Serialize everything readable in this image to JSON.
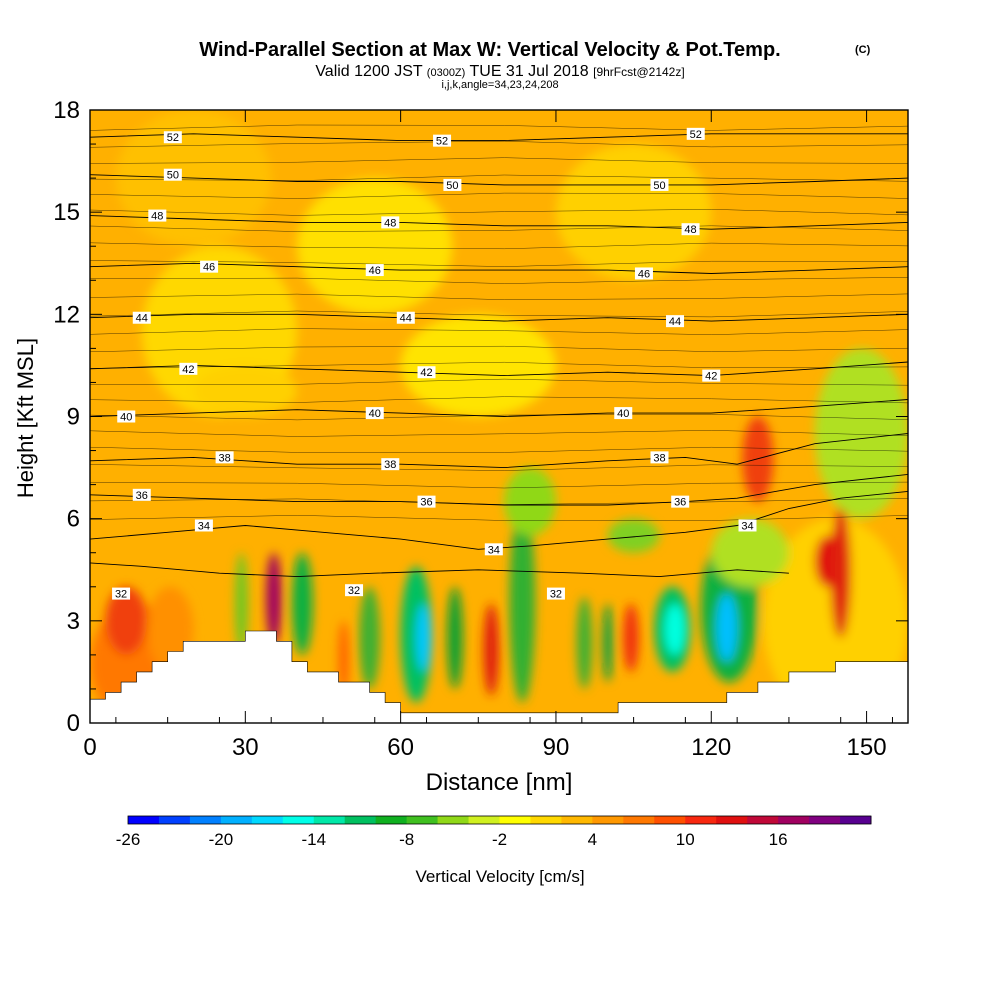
{
  "title": {
    "main": "Wind-Parallel Section at Max W: Vertical Velocity & Pot.Temp.",
    "copyright": "(C)",
    "valid_prefix": "Valid 1200 JST",
    "valid_utc": "(0300Z)",
    "valid_date": "TUE 31 Jul 2018",
    "forecast": "[9hrFcst@2142z]",
    "indices": "i,j,k,angle=34,23,24,208"
  },
  "chart_data": {
    "type": "heatmap",
    "xlabel": "Distance [nm]",
    "ylabel": "Height [Kft MSL]",
    "xlim": [
      0,
      158
    ],
    "ylim": [
      0,
      18
    ],
    "x_ticks": [
      "0",
      "30",
      "60",
      "90",
      "120",
      "150"
    ],
    "y_ticks": [
      "0",
      "3",
      "6",
      "9",
      "12",
      "15",
      "18"
    ],
    "colorbar": {
      "label": "Vertical Velocity [cm/s]",
      "tick_labels": [
        "-26",
        "-20",
        "-14",
        "-8",
        "-2",
        "4",
        "10",
        "16"
      ],
      "colors": [
        "#0000ff",
        "#0040ff",
        "#0080ff",
        "#00b0ff",
        "#00d8ff",
        "#00ffe8",
        "#00e8a8",
        "#00c060",
        "#10b020",
        "#40c020",
        "#90d818",
        "#d0f020",
        "#ffff00",
        "#ffd800",
        "#ffb800",
        "#ff9800",
        "#ff7800",
        "#ff5000",
        "#f82810",
        "#e01010",
        "#c00838",
        "#a00060",
        "#800080",
        "#580090"
      ]
    },
    "isentropes": [
      {
        "label": "32",
        "x": [
          0,
          10,
          25,
          40,
          55,
          75,
          95,
          110,
          125,
          135
        ],
        "y": [
          4.7,
          4.6,
          4.4,
          4.3,
          4.4,
          4.5,
          4.4,
          4.3,
          4.5,
          4.4
        ]
      },
      {
        "label": "34",
        "x": [
          0,
          15,
          30,
          45,
          60,
          75,
          85,
          100,
          115,
          125,
          135,
          145,
          158
        ],
        "y": [
          5.4,
          5.6,
          5.8,
          5.6,
          5.4,
          5.1,
          5.2,
          5.4,
          5.6,
          5.8,
          6.3,
          6.6,
          6.8
        ]
      },
      {
        "label": "36",
        "x": [
          0,
          20,
          40,
          60,
          80,
          100,
          115,
          125,
          140,
          158
        ],
        "y": [
          6.7,
          6.6,
          6.5,
          6.5,
          6.4,
          6.4,
          6.5,
          6.6,
          7.0,
          7.3
        ]
      },
      {
        "label": "38",
        "x": [
          0,
          20,
          40,
          60,
          80,
          100,
          115,
          125,
          140,
          158
        ],
        "y": [
          7.7,
          7.8,
          7.6,
          7.6,
          7.5,
          7.7,
          7.8,
          7.6,
          8.2,
          8.5
        ]
      },
      {
        "label": "40",
        "x": [
          0,
          20,
          40,
          60,
          80,
          100,
          120,
          140,
          158
        ],
        "y": [
          9.0,
          9.1,
          9.2,
          9.1,
          9.0,
          9.1,
          9.1,
          9.3,
          9.5
        ]
      },
      {
        "label": "42",
        "x": [
          0,
          20,
          40,
          60,
          80,
          100,
          120,
          140,
          158
        ],
        "y": [
          10.4,
          10.5,
          10.4,
          10.3,
          10.2,
          10.3,
          10.2,
          10.4,
          10.6
        ]
      },
      {
        "label": "44",
        "x": [
          0,
          20,
          40,
          60,
          80,
          100,
          120,
          140,
          158
        ],
        "y": [
          11.9,
          12.0,
          12.0,
          11.9,
          11.8,
          11.9,
          11.8,
          11.9,
          12.0
        ]
      },
      {
        "label": "46",
        "x": [
          0,
          20,
          40,
          60,
          80,
          100,
          120,
          140,
          158
        ],
        "y": [
          13.4,
          13.5,
          13.4,
          13.3,
          13.3,
          13.3,
          13.2,
          13.3,
          13.4
        ]
      },
      {
        "label": "48",
        "x": [
          0,
          20,
          40,
          60,
          80,
          100,
          120,
          140,
          158
        ],
        "y": [
          14.9,
          14.8,
          14.7,
          14.7,
          14.6,
          14.6,
          14.5,
          14.6,
          14.7
        ]
      },
      {
        "label": "50",
        "x": [
          0,
          20,
          40,
          60,
          80,
          100,
          120,
          140,
          158
        ],
        "y": [
          16.1,
          16.0,
          15.9,
          15.9,
          15.8,
          15.8,
          15.8,
          15.9,
          16.0
        ]
      },
      {
        "label": "52",
        "x": [
          0,
          20,
          40,
          60,
          80,
          100,
          120,
          140,
          158
        ],
        "y": [
          17.2,
          17.3,
          17.2,
          17.1,
          17.1,
          17.2,
          17.3,
          17.3,
          17.3
        ]
      }
    ],
    "isentrope_labels": [
      {
        "text": "52",
        "x": 16,
        "y": 17.2
      },
      {
        "text": "52",
        "x": 68,
        "y": 17.1
      },
      {
        "text": "52",
        "x": 117,
        "y": 17.3
      },
      {
        "text": "50",
        "x": 16,
        "y": 16.1
      },
      {
        "text": "50",
        "x": 70,
        "y": 15.8
      },
      {
        "text": "50",
        "x": 110,
        "y": 15.8
      },
      {
        "text": "48",
        "x": 13,
        "y": 14.9
      },
      {
        "text": "48",
        "x": 58,
        "y": 14.7
      },
      {
        "text": "48",
        "x": 116,
        "y": 14.5
      },
      {
        "text": "46",
        "x": 23,
        "y": 13.4
      },
      {
        "text": "46",
        "x": 55,
        "y": 13.3
      },
      {
        "text": "46",
        "x": 107,
        "y": 13.2
      },
      {
        "text": "44",
        "x": 10,
        "y": 11.9
      },
      {
        "text": "44",
        "x": 61,
        "y": 11.9
      },
      {
        "text": "44",
        "x": 113,
        "y": 11.8
      },
      {
        "text": "42",
        "x": 19,
        "y": 10.4
      },
      {
        "text": "42",
        "x": 65,
        "y": 10.3
      },
      {
        "text": "42",
        "x": 120,
        "y": 10.2
      },
      {
        "text": "40",
        "x": 7,
        "y": 9.0
      },
      {
        "text": "40",
        "x": 55,
        "y": 9.1
      },
      {
        "text": "40",
        "x": 103,
        "y": 9.1
      },
      {
        "text": "38",
        "x": 26,
        "y": 7.8
      },
      {
        "text": "38",
        "x": 58,
        "y": 7.6
      },
      {
        "text": "38",
        "x": 110,
        "y": 7.8
      },
      {
        "text": "36",
        "x": 10,
        "y": 6.7
      },
      {
        "text": "36",
        "x": 65,
        "y": 6.5
      },
      {
        "text": "36",
        "x": 114,
        "y": 6.5
      },
      {
        "text": "34",
        "x": 22,
        "y": 5.8
      },
      {
        "text": "34",
        "x": 78,
        "y": 5.1
      },
      {
        "text": "34",
        "x": 127,
        "y": 5.8
      },
      {
        "text": "32",
        "x": 6,
        "y": 3.8
      },
      {
        "text": "32",
        "x": 51,
        "y": 3.9
      },
      {
        "text": "32",
        "x": 90,
        "y": 3.8
      }
    ],
    "terrain": {
      "x": [
        0,
        3,
        6,
        9,
        12,
        15,
        18,
        21,
        24,
        27,
        30,
        33,
        36,
        39,
        42,
        45,
        48,
        51,
        54,
        57,
        60,
        63,
        66,
        69,
        72,
        75,
        78,
        81,
        84,
        87,
        90,
        93,
        96,
        99,
        102,
        105,
        108,
        111,
        114,
        117,
        120,
        123,
        126,
        129,
        132,
        135,
        138,
        141,
        144,
        147,
        150,
        153,
        156,
        158
      ],
      "y": [
        0.7,
        0.9,
        1.2,
        1.5,
        1.8,
        2.1,
        2.4,
        2.4,
        2.4,
        2.4,
        2.7,
        2.7,
        2.4,
        1.8,
        1.5,
        1.5,
        1.2,
        1.2,
        0.9,
        0.6,
        0.3,
        0.3,
        0.3,
        0.3,
        0.3,
        0.3,
        0.3,
        0.3,
        0.3,
        0.3,
        0.3,
        0.3,
        0.3,
        0.3,
        0.6,
        0.6,
        0.6,
        0.6,
        0.6,
        0.6,
        0.6,
        0.9,
        0.9,
        1.2,
        1.2,
        1.5,
        1.5,
        1.5,
        1.8,
        1.8,
        1.8,
        1.8,
        1.8,
        1.8
      ]
    }
  }
}
